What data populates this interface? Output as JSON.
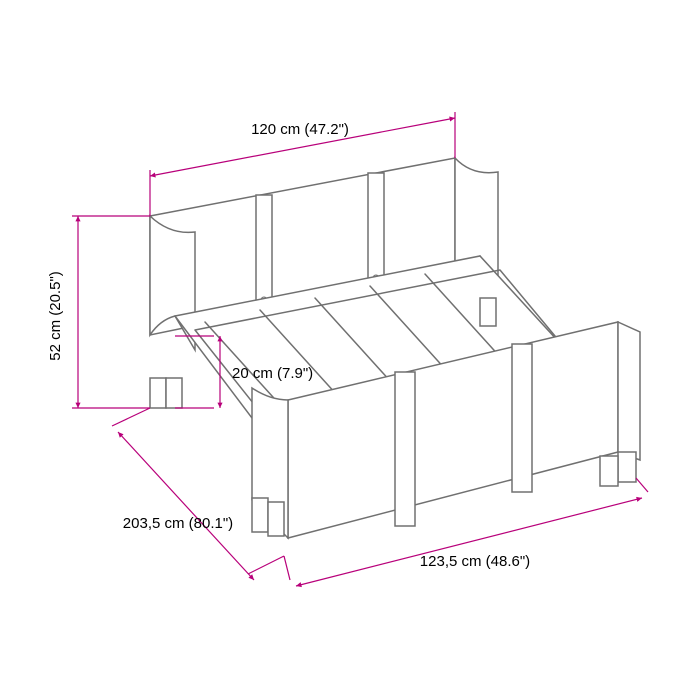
{
  "dimensions": {
    "top_width": {
      "label": "120 cm (47.2\")"
    },
    "left_height": {
      "label": "52 cm (20.5\")"
    },
    "inner_height": {
      "label": "20 cm (7.9\")"
    },
    "depth": {
      "label": "203,5 cm (80.1\")"
    },
    "front_width": {
      "label": "123,5 cm (48.6\")"
    }
  },
  "colors": {
    "dimension_line": "#b8007a",
    "product_line": "#707070",
    "background": "#ffffff",
    "text": "#000000"
  },
  "arrow_size": 6
}
